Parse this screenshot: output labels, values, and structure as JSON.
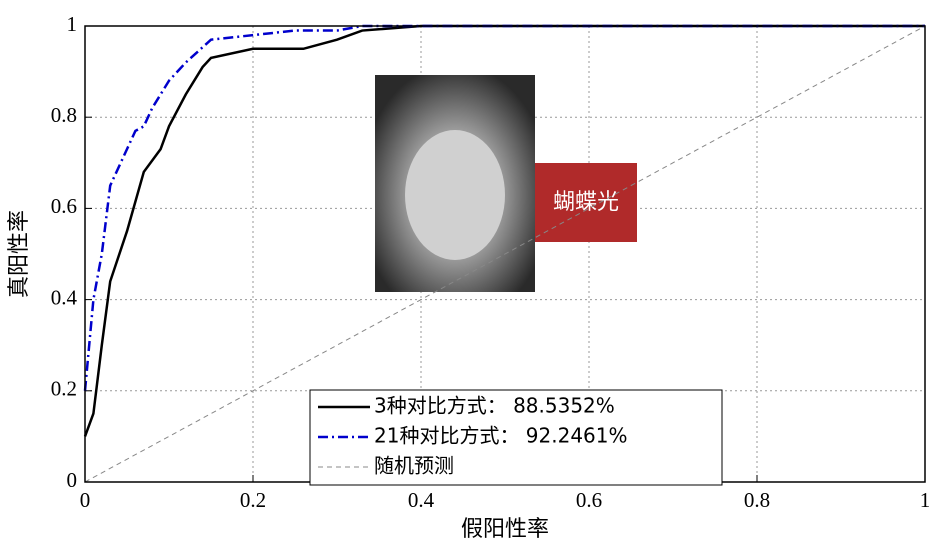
{
  "chart_data": {
    "type": "line",
    "xlabel": "假阳性率",
    "ylabel": "真阳性率",
    "annotation": "蝴蝶光",
    "xlim": [
      0,
      1
    ],
    "ylim": [
      0,
      1
    ],
    "xticks": [
      0,
      0.2,
      0.4,
      0.6,
      0.8,
      1
    ],
    "yticks": [
      0,
      0.2,
      0.4,
      0.6,
      0.8,
      1
    ],
    "grid": true,
    "legend": "bottom",
    "series": [
      {
        "name": "3种对比方式： 88.5352%",
        "color": "#000000",
        "style": "solid",
        "x": [
          0,
          0.01,
          0.02,
          0.03,
          0.05,
          0.07,
          0.09,
          0.1,
          0.12,
          0.14,
          0.15,
          0.2,
          0.26,
          0.3,
          0.33,
          0.4,
          1
        ],
        "values": [
          0.1,
          0.15,
          0.3,
          0.44,
          0.55,
          0.68,
          0.73,
          0.78,
          0.85,
          0.91,
          0.93,
          0.95,
          0.95,
          0.97,
          0.99,
          1,
          1
        ]
      },
      {
        "name": "21种对比方式： 92.2461%",
        "color": "#0000cc",
        "style": "dashdot",
        "x": [
          0,
          0.01,
          0.02,
          0.03,
          0.05,
          0.06,
          0.07,
          0.08,
          0.1,
          0.12,
          0.15,
          0.2,
          0.25,
          0.3,
          0.33,
          1
        ],
        "values": [
          0.2,
          0.4,
          0.5,
          0.65,
          0.73,
          0.77,
          0.78,
          0.82,
          0.88,
          0.92,
          0.97,
          0.98,
          0.99,
          0.99,
          1,
          1
        ]
      },
      {
        "name": "随机预测",
        "color": "#888888",
        "style": "dashed",
        "x": [
          0,
          1
        ],
        "values": [
          0,
          1
        ]
      }
    ]
  }
}
